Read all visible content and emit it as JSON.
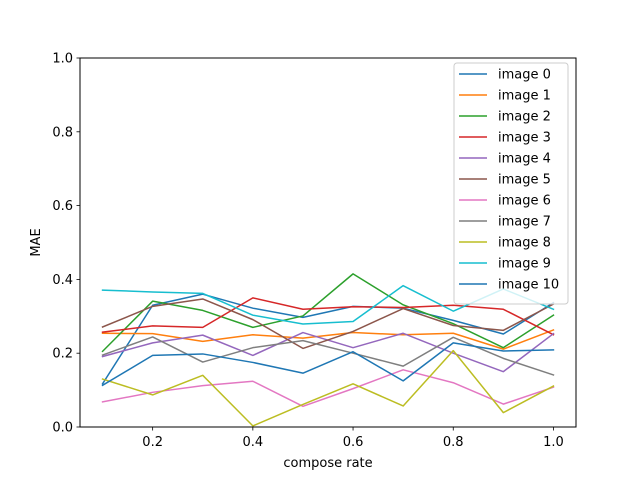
{
  "chart_data": {
    "type": "line",
    "title": "",
    "xlabel": "compose rate",
    "ylabel": "MAE",
    "x": [
      0.1,
      0.2,
      0.3,
      0.4,
      0.5,
      0.6,
      0.7,
      0.8,
      0.9,
      1.0
    ],
    "xlim": [
      0.055,
      1.045
    ],
    "ylim": [
      0.0,
      1.0
    ],
    "x_ticks": [
      "0.2",
      "0.4",
      "0.6",
      "0.8",
      "1.0"
    ],
    "x_tick_values": [
      0.2,
      0.4,
      0.6,
      0.8,
      1.0
    ],
    "y_ticks": [
      "0.0",
      "0.2",
      "0.4",
      "0.6",
      "0.8",
      "1.0"
    ],
    "y_tick_values": [
      0.0,
      0.2,
      0.4,
      0.6,
      0.8,
      1.0
    ],
    "grid": false,
    "legend_position": "top-right",
    "series": [
      {
        "name": "image 0",
        "color": "#1f77b4",
        "values": [
          0.117,
          0.33,
          0.36,
          0.322,
          0.297,
          0.327,
          0.322,
          0.289,
          0.252,
          0.337
        ]
      },
      {
        "name": "image 1",
        "color": "#ff7f0e",
        "values": [
          0.254,
          0.253,
          0.232,
          0.25,
          0.241,
          0.256,
          0.25,
          0.254,
          0.211,
          0.263
        ]
      },
      {
        "name": "image 2",
        "color": "#2ca02c",
        "values": [
          0.205,
          0.341,
          0.316,
          0.27,
          0.301,
          0.415,
          0.331,
          0.28,
          0.215,
          0.303
        ]
      },
      {
        "name": "image 3",
        "color": "#d62728",
        "values": [
          0.257,
          0.274,
          0.27,
          0.35,
          0.319,
          0.326,
          0.324,
          0.33,
          0.319,
          0.25
        ]
      },
      {
        "name": "image 4",
        "color": "#9467bd",
        "values": [
          0.191,
          0.228,
          0.249,
          0.194,
          0.256,
          0.215,
          0.254,
          0.2,
          0.15,
          0.253
        ]
      },
      {
        "name": "image 5",
        "color": "#8c564b",
        "values": [
          0.271,
          0.327,
          0.347,
          0.291,
          0.213,
          0.259,
          0.321,
          0.275,
          0.262,
          0.333
        ]
      },
      {
        "name": "image 6",
        "color": "#e377c2",
        "values": [
          0.068,
          0.094,
          0.112,
          0.124,
          0.056,
          0.104,
          0.155,
          0.12,
          0.062,
          0.108
        ]
      },
      {
        "name": "image 7",
        "color": "#7f7f7f",
        "values": [
          0.195,
          0.244,
          0.176,
          0.215,
          0.234,
          0.2,
          0.165,
          0.243,
          0.186,
          0.141
        ]
      },
      {
        "name": "image 8",
        "color": "#bcbd22",
        "values": [
          0.13,
          0.087,
          0.14,
          0.003,
          0.061,
          0.117,
          0.057,
          0.207,
          0.039,
          0.111
        ]
      },
      {
        "name": "image 9",
        "color": "#17becf",
        "values": [
          0.371,
          0.366,
          0.362,
          0.303,
          0.279,
          0.286,
          0.383,
          0.314,
          0.374,
          0.319
        ]
      },
      {
        "name": "image 10",
        "color": "#1f77b4",
        "values": [
          0.113,
          0.194,
          0.198,
          0.175,
          0.146,
          0.204,
          0.125,
          0.228,
          0.206,
          0.209
        ]
      }
    ]
  }
}
